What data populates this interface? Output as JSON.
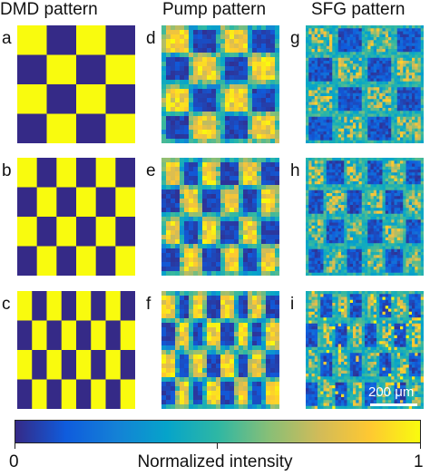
{
  "column_titles": [
    "DMD pattern",
    "Pump pattern",
    "SFG pattern"
  ],
  "panel_letters": [
    "a",
    "b",
    "c",
    "d",
    "e",
    "f",
    "g",
    "h",
    "i"
  ],
  "colorbar": {
    "min_label": "0",
    "max_label": "1",
    "title": "Normalized intensity",
    "colormap": "parula",
    "colors": [
      "#352a87",
      "#0f5cdd",
      "#1481d6",
      "#06a4ca",
      "#2eb7a4",
      "#87bf77",
      "#d1bb59",
      "#fec832",
      "#f9fb0e"
    ]
  },
  "scale_bar": {
    "label": "200 μm"
  },
  "patterns": [
    {
      "cols": 4,
      "rows": 4
    },
    {
      "cols": 6,
      "rows": 4
    },
    {
      "cols": 8,
      "rows": 4
    }
  ],
  "colors": {
    "yellow": "#f9fb0e",
    "navy": "#352a87"
  }
}
